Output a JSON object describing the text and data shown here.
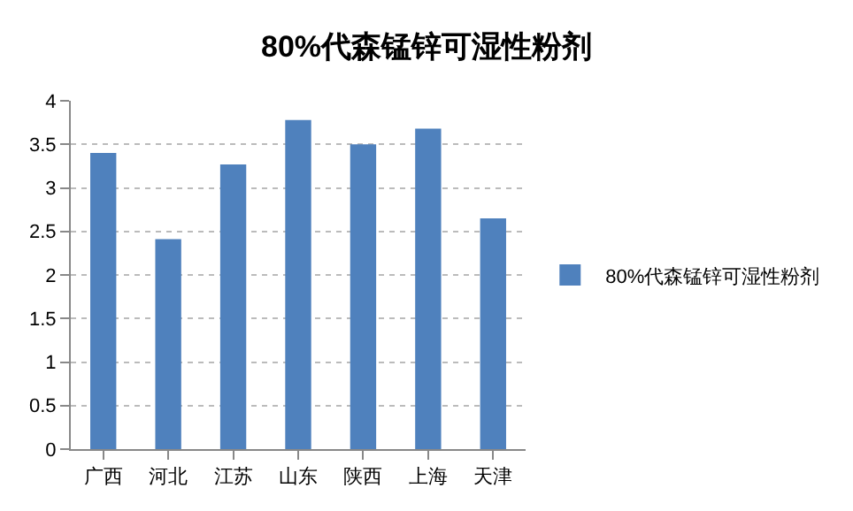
{
  "chart_data": {
    "type": "bar",
    "title": "80%代森锰锌可湿性粉剂",
    "categories": [
      "广西",
      "河北",
      "江苏",
      "山东",
      "陕西",
      "上海",
      "天津"
    ],
    "series": [
      {
        "name": "80%代森锰锌可湿性粉剂",
        "color": "#4f81bd",
        "values": [
          3.4,
          2.41,
          3.27,
          3.78,
          3.5,
          3.68,
          2.65
        ]
      }
    ],
    "ylim": [
      0,
      4
    ],
    "yticks": [
      0,
      0.5,
      1,
      1.5,
      2,
      2.5,
      3,
      3.5,
      4
    ],
    "grid": "y",
    "legend": "right"
  }
}
